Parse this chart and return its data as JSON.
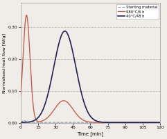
{
  "title": "",
  "xlabel": "Time [min]",
  "ylabel": "Normalised heat flow [W/g]",
  "xlim": [
    0,
    120
  ],
  "ylim": [
    0.0,
    0.375
  ],
  "yticks": [
    0.0,
    0.1,
    0.2,
    0.3
  ],
  "ytick_labels": [
    "0.00",
    "0.10",
    "0.20",
    "0.30"
  ],
  "grid_yticks": [
    0.1,
    0.2,
    0.3
  ],
  "xticks": [
    0,
    15,
    30,
    45,
    60,
    75,
    90,
    105,
    120
  ],
  "grid_color": "#bbbbbb",
  "background_color": "#f0ede8",
  "plot_bg": "#e8e5e0",
  "legend": {
    "entries": [
      "Starting material",
      "980°C/6 h",
      "40°C/48 h"
    ],
    "colors": [
      "#8899aa",
      "#c06050",
      "#222255"
    ],
    "linestyles": [
      "--",
      "-",
      "-"
    ],
    "linewidths": [
      0.8,
      1.0,
      1.2
    ]
  },
  "sm_peak_time": 3,
  "sm_peak_val": 0.006,
  "sm_sigma": 1.5,
  "sm_base": 0.002,
  "curve980_peak_time": 5,
  "curve980_peak_val": 0.335,
  "curve980_sigma1": 3.0,
  "curve980_hump_time": 37,
  "curve980_hump_val": 0.068,
  "curve980_sigma2": 8.0,
  "curve980_base": 0.002,
  "curve40_peak_time": 38,
  "curve40_peak_val": 0.285,
  "curve40_sigma": 9.5,
  "curve40_base": 0.002
}
